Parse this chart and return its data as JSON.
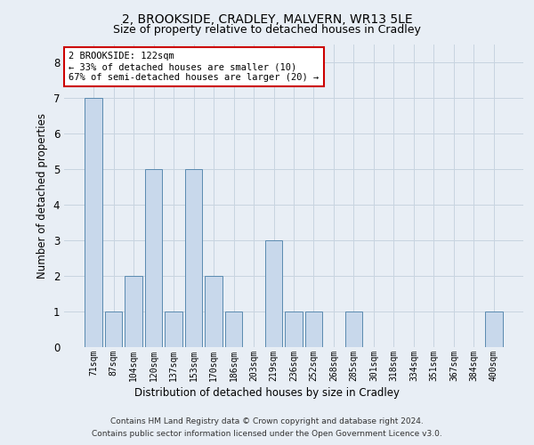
{
  "title1": "2, BROOKSIDE, CRADLEY, MALVERN, WR13 5LE",
  "title2": "Size of property relative to detached houses in Cradley",
  "xlabel": "Distribution of detached houses by size in Cradley",
  "ylabel": "Number of detached properties",
  "categories": [
    "71sqm",
    "87sqm",
    "104sqm",
    "120sqm",
    "137sqm",
    "153sqm",
    "170sqm",
    "186sqm",
    "203sqm",
    "219sqm",
    "236sqm",
    "252sqm",
    "268sqm",
    "285sqm",
    "301sqm",
    "318sqm",
    "334sqm",
    "351sqm",
    "367sqm",
    "384sqm",
    "400sqm"
  ],
  "values": [
    7,
    1,
    2,
    5,
    1,
    5,
    2,
    1,
    0,
    3,
    1,
    1,
    0,
    1,
    0,
    0,
    0,
    0,
    0,
    0,
    1
  ],
  "bar_color_light": "#c8d8eb",
  "bar_edge_color": "#5a8ab0",
  "annotation_line1": "2 BROOKSIDE: 122sqm",
  "annotation_line2": "← 33% of detached houses are smaller (10)",
  "annotation_line3": "67% of semi-detached houses are larger (20) →",
  "annotation_box_color": "#ffffff",
  "annotation_box_edge": "#cc0000",
  "ylim": [
    0,
    8.5
  ],
  "yticks": [
    0,
    1,
    2,
    3,
    4,
    5,
    6,
    7,
    8
  ],
  "grid_color": "#c8d4e0",
  "bg_color": "#e8eef5",
  "footer1": "Contains HM Land Registry data © Crown copyright and database right 2024.",
  "footer2": "Contains public sector information licensed under the Open Government Licence v3.0."
}
